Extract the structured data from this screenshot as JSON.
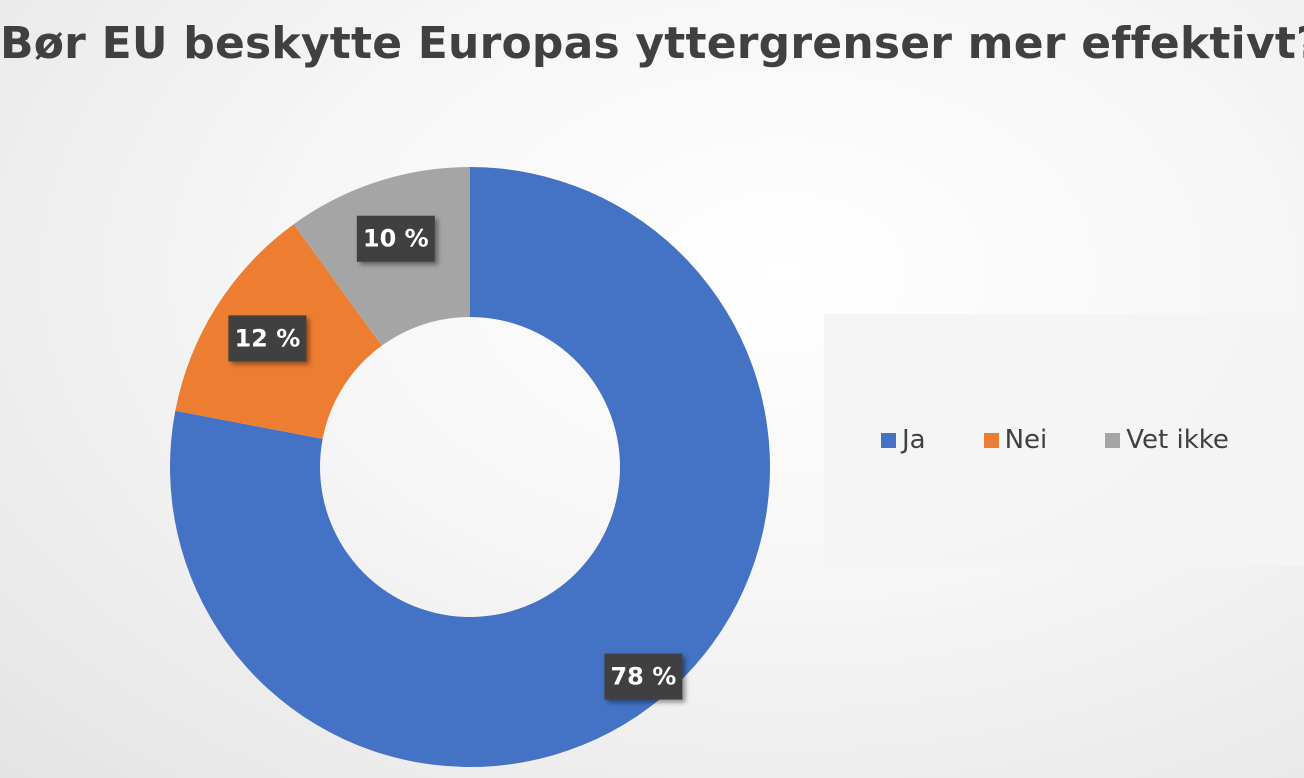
{
  "chart_data": {
    "type": "pie",
    "title": "Bør EU beskytte Europas yttergrenser mer effektivt?",
    "categories": [
      "Ja",
      "Nei",
      "Vet ikke"
    ],
    "values": [
      78,
      12,
      10
    ],
    "data_labels": [
      "78 %",
      "12 %",
      "10 %"
    ],
    "colors": [
      "#4472C4",
      "#ED7D31",
      "#A5A5A5"
    ],
    "legend": "right"
  }
}
